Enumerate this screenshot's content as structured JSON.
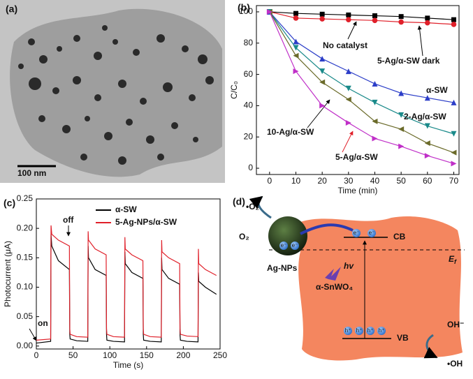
{
  "panel_a": {
    "label": "(a)",
    "scale_bar": "100 nm"
  },
  "chart_data": [
    {
      "type": "line",
      "panel_label": "(b)",
      "x_label": "Time (min)",
      "y_label": "C/C₀",
      "x": [
        0,
        10,
        20,
        30,
        40,
        50,
        60,
        70
      ],
      "xlim": [
        -5,
        72
      ],
      "xticks": [
        0,
        10,
        20,
        30,
        40,
        50,
        60,
        70
      ],
      "ylim": [
        -4,
        104
      ],
      "yticks": [
        0,
        20,
        40,
        60,
        80,
        100
      ],
      "series": [
        {
          "name": "No catalyst",
          "color": "#000000",
          "marker": "square",
          "values": [
            100,
            99,
            98.5,
            98,
            97.5,
            97,
            96,
            95
          ]
        },
        {
          "name": "5-Ag/α-SW dark",
          "color": "#e0202a",
          "marker": "circle",
          "values": [
            100,
            96,
            95.5,
            95,
            94.5,
            93.5,
            93,
            92
          ]
        },
        {
          "name": "α-SW",
          "color": "#2c3ec8",
          "marker": "triangle-up",
          "values": [
            100,
            81,
            70,
            62,
            54,
            48,
            45,
            42
          ]
        },
        {
          "name": "2-Ag/α-SW",
          "color": "#1a8a8a",
          "marker": "triangle-down",
          "values": [
            100,
            77,
            62,
            51,
            42,
            34,
            27,
            22
          ]
        },
        {
          "name": "10-Ag/α-SW",
          "color": "#6b6b2a",
          "marker": "triangle-left",
          "values": [
            100,
            72,
            55,
            44,
            30,
            25,
            16,
            10
          ]
        },
        {
          "name": "5-Ag/α-SW",
          "color": "#c030c8",
          "marker": "triangle-right",
          "values": [
            100,
            62,
            40,
            29,
            19,
            14,
            8,
            3
          ]
        }
      ]
    },
    {
      "type": "line",
      "panel_label": "(c)",
      "x_label": "Time (s)",
      "y_label": "Photocurrent (μA)",
      "annotations": [
        "on",
        "off"
      ],
      "x": [
        0,
        19.5,
        20,
        21,
        30,
        45,
        45.5,
        46,
        55,
        70,
        70.5,
        71,
        80,
        95,
        95.5,
        96,
        105,
        120,
        120.5,
        121,
        130,
        145,
        145.5,
        146,
        155,
        170,
        170.5,
        171,
        180,
        195,
        195.5,
        196,
        205,
        220,
        220.5,
        221,
        230,
        245
      ],
      "xlim": [
        0,
        250
      ],
      "xticks": [
        0,
        50,
        100,
        150,
        200,
        250
      ],
      "ylim": [
        -0.005,
        0.25
      ],
      "yticks": [
        {
          "value": 0,
          "label": "0.00"
        },
        0.05,
        {
          "value": 0.1,
          "label": "0.10"
        },
        0.15,
        {
          "value": 0.2,
          "label": "0.20"
        },
        0.25
      ],
      "legend": "upper left",
      "series": [
        {
          "name": "α-SW",
          "color": "#000000",
          "values": [
            0.005,
            0.008,
            0.19,
            0.17,
            0.145,
            0.13,
            0.02,
            0.012,
            0.009,
            0.008,
            0.17,
            0.15,
            0.13,
            0.12,
            0.02,
            0.01,
            0.008,
            0.007,
            0.16,
            0.14,
            0.125,
            0.115,
            0.02,
            0.01,
            0.008,
            0.007,
            0.15,
            0.13,
            0.115,
            0.105,
            0.02,
            0.01,
            0.008,
            0.007,
            0.125,
            0.11,
            0.1,
            0.088
          ]
        },
        {
          "name": "5-Ag-NPs/α-SW",
          "color": "#e0202a",
          "values": [
            0.01,
            0.012,
            0.205,
            0.19,
            0.18,
            0.17,
            0.03,
            0.02,
            0.016,
            0.015,
            0.195,
            0.18,
            0.165,
            0.155,
            0.03,
            0.02,
            0.016,
            0.015,
            0.185,
            0.165,
            0.155,
            0.145,
            0.03,
            0.02,
            0.016,
            0.015,
            0.18,
            0.16,
            0.15,
            0.14,
            0.03,
            0.02,
            0.017,
            0.016,
            0.165,
            0.14,
            0.13,
            0.12
          ]
        }
      ]
    }
  ],
  "panel_d": {
    "label": "(d)",
    "superoxide": "•O₂",
    "oxygen": "O₂",
    "ag": "Ag-NPs",
    "semiconductor": "α-SnWO₄",
    "cb": "CB",
    "vb": "VB",
    "fermi_symbol": "E",
    "fermi_subscript": "f",
    "light": "hv",
    "hydroxide": "OH⁻",
    "hydroxyl": "•OH",
    "electron": "e⁻",
    "hole": "h⁺"
  }
}
